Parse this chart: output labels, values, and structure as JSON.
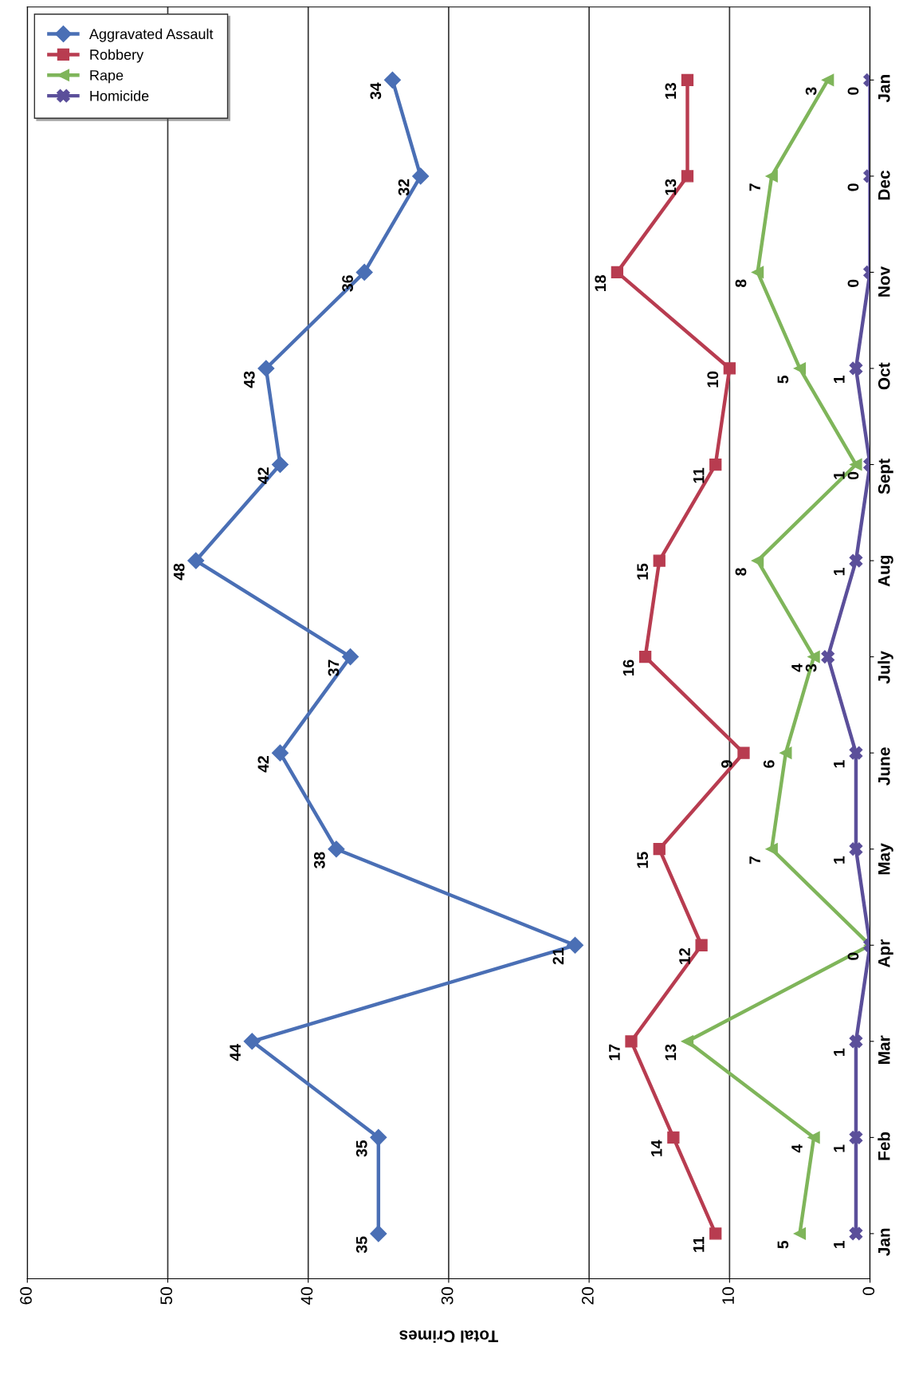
{
  "chart_data": {
    "type": "line",
    "xlabel": "Total Crimes",
    "categories": [
      "Jan",
      "Dec",
      "Nov",
      "Oct",
      "Sept",
      "Aug",
      "July",
      "June",
      "May",
      "Apr",
      "Mar",
      "Feb",
      "Jan"
    ],
    "series": [
      {
        "name": "Aggravated Assault",
        "color": "#4a6fb5",
        "marker": "diamond",
        "values": [
          34,
          32,
          36,
          43,
          42,
          48,
          37,
          42,
          38,
          21,
          44,
          35,
          35
        ],
        "value_labels": [
          "34",
          "32",
          "36",
          "43",
          "42",
          "48",
          "37",
          "42",
          "38",
          "21",
          "44",
          "35",
          "35"
        ]
      },
      {
        "name": "Robbery",
        "color": "#b83c50",
        "marker": "square",
        "values": [
          13,
          13,
          18,
          10,
          11,
          15,
          16,
          9,
          15,
          12,
          17,
          14,
          11
        ],
        "value_labels": [
          "13",
          "13",
          "18",
          "10",
          "11",
          "15",
          "16",
          "9",
          "15",
          "12",
          "17",
          "14",
          "11"
        ]
      },
      {
        "name": "Rape",
        "color": "#7fb55a",
        "marker": "triangle",
        "values": [
          3,
          7,
          8,
          5,
          1,
          8,
          4,
          6,
          7,
          0,
          13,
          4,
          5
        ],
        "value_labels": [
          "3",
          "7",
          "8",
          "5",
          "1",
          "8",
          "4",
          "6",
          "7",
          null,
          "13",
          "4",
          "5"
        ]
      },
      {
        "name": "Homicide",
        "color": "#5b4f9a",
        "marker": "cross",
        "values": [
          0,
          0,
          0,
          1,
          0,
          1,
          3,
          1,
          1,
          0,
          1,
          1,
          1
        ],
        "value_labels": [
          "0",
          "0",
          "0",
          "1",
          "0",
          "1",
          "3",
          "1",
          "1",
          "0",
          "1",
          "1",
          "1"
        ]
      }
    ],
    "orientation": "horizontal",
    "xlim": [
      60,
      0
    ],
    "xticks": [
      0,
      10,
      20,
      30,
      40,
      50,
      60
    ],
    "grid": "x",
    "legend": "top left",
    "line_style": "solid"
  }
}
